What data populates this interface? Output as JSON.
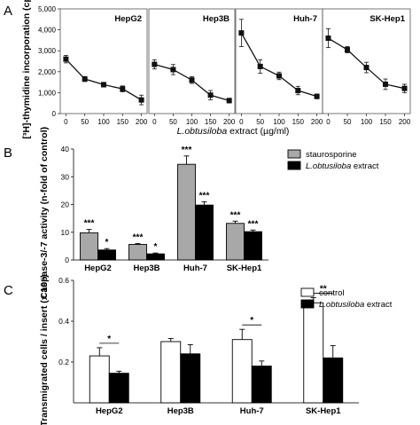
{
  "panel_labels": {
    "a": "A",
    "b": "B",
    "c": "C"
  },
  "chart_data": [
    {
      "panel": "A",
      "type": "line",
      "ylabel": "[³H]-thymidine incorporation (cpm)",
      "xlabel_italic": "L.obtusiloba",
      "xlabel_rest": " extract (µg/ml)",
      "x_ticks": [
        "0",
        "50",
        "100",
        "150",
        "200"
      ],
      "y_ticks": [
        "0",
        "1,000",
        "2,000",
        "3,000",
        "4,000",
        "5,000"
      ],
      "ylim": [
        0,
        5000
      ],
      "xlim": [
        -15,
        215
      ],
      "subplots": [
        {
          "name": "HepG2",
          "x": [
            0,
            50,
            100,
            150,
            200
          ],
          "y": [
            2600,
            1650,
            1380,
            1180,
            650
          ],
          "err": [
            180,
            120,
            110,
            140,
            230
          ]
        },
        {
          "name": "Hep3B",
          "x": [
            0,
            50,
            100,
            150,
            200
          ],
          "y": [
            2350,
            2100,
            1600,
            880,
            620
          ],
          "err": [
            220,
            240,
            160,
            220,
            110
          ]
        },
        {
          "name": "Huh-7",
          "x": [
            0,
            50,
            100,
            150,
            200
          ],
          "y": [
            3850,
            2250,
            1800,
            1100,
            820
          ],
          "err": [
            650,
            320,
            180,
            200,
            110
          ]
        },
        {
          "name": "SK-Hep1",
          "x": [
            0,
            50,
            100,
            150,
            200
          ],
          "y": [
            3600,
            3050,
            2200,
            1400,
            1200
          ],
          "err": [
            450,
            150,
            250,
            250,
            200
          ]
        }
      ]
    },
    {
      "panel": "B",
      "type": "bar",
      "ylabel": "Caspase-3/-7 activity (n-fold of control)",
      "categories": [
        "HepG2",
        "Hep3B",
        "Huh-7",
        "SK-Hep1"
      ],
      "y_ticks": [
        "0",
        "10",
        "20",
        "30",
        "40"
      ],
      "ylim": [
        0,
        40
      ],
      "legend": [
        {
          "label": "staurosporine",
          "italic": "",
          "color": "#a8a8a8"
        },
        {
          "label": " extract",
          "italic": "L.obtusiloba",
          "color": "#000000"
        }
      ],
      "series": [
        {
          "name": "staurosporine",
          "color": "#a8a8a8",
          "values": [
            9.8,
            5.6,
            34.5,
            13.2
          ],
          "err": [
            1.2,
            0.3,
            3.0,
            0.8
          ],
          "sig": [
            "***",
            "***",
            "***",
            "***"
          ]
        },
        {
          "name": "L.obtusiloba extract",
          "color": "#000000",
          "values": [
            3.6,
            2.2,
            19.8,
            10.2
          ],
          "err": [
            0.5,
            0.3,
            1.2,
            0.6
          ],
          "sig": [
            "*",
            "*",
            "***",
            "***"
          ]
        }
      ]
    },
    {
      "panel": "C",
      "type": "bar",
      "ylabel": "Transmigrated cells / insert (x 10⁵)",
      "categories": [
        "HepG2",
        "Hep3B",
        "Huh-7",
        "SK-Hep1"
      ],
      "y_ticks": [
        "0.2",
        "0.4",
        "0.6"
      ],
      "ylim": [
        0.0,
        0.6
      ],
      "legend": [
        {
          "label": "control",
          "italic": "",
          "color": "#ffffff"
        },
        {
          "label": " extract",
          "italic": "L.obtusiloba",
          "color": "#000000"
        }
      ],
      "series": [
        {
          "name": "control",
          "color": "#ffffff",
          "values": [
            0.23,
            0.3,
            0.31,
            0.49
          ],
          "err": [
            0.04,
            0.015,
            0.05,
            0.025
          ]
        },
        {
          "name": "L.obtusiloba extract",
          "color": "#000000",
          "values": [
            0.145,
            0.24,
            0.18,
            0.22
          ],
          "err": [
            0.01,
            0.045,
            0.025,
            0.06
          ]
        }
      ],
      "sig": [
        "*",
        "",
        "*",
        "**"
      ]
    }
  ]
}
